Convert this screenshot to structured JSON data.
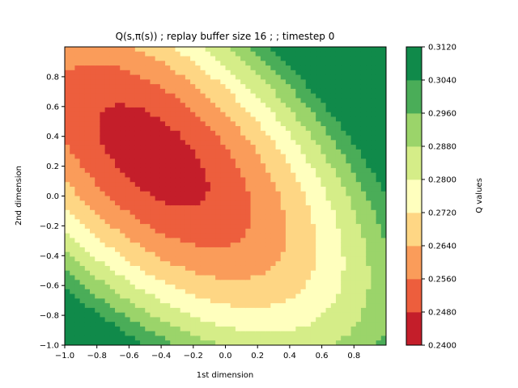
{
  "chart_data": {
    "type": "contour",
    "title": "Q(s,π(s)) ; replay buffer size 16 ;  ; timestep 0",
    "xlabel": "1st dimension",
    "ylabel": "2nd dimension",
    "xlim": [
      -1.0,
      1.0
    ],
    "ylim": [
      -1.0,
      1.0
    ],
    "x_ticks": [
      "−1.0",
      "−0.8",
      "−0.6",
      "−0.4",
      "−0.2",
      "0.0",
      "0.2",
      "0.4",
      "0.6",
      "0.8"
    ],
    "x_tick_values": [
      -1.0,
      -0.8,
      -0.6,
      -0.4,
      -0.2,
      0.0,
      0.2,
      0.4,
      0.6,
      0.8
    ],
    "y_ticks": [
      "−1.0",
      "−0.8",
      "−0.6",
      "−0.4",
      "−0.2",
      "0.0",
      "0.2",
      "0.4",
      "0.6",
      "0.8"
    ],
    "y_tick_values": [
      -1.0,
      -0.8,
      -0.6,
      -0.4,
      -0.2,
      0.0,
      0.2,
      0.4,
      0.6,
      0.8
    ],
    "minimum_location": [
      -0.45,
      0.27
    ],
    "colorbar": {
      "label": "Q values",
      "levels": [
        0.24,
        0.248,
        0.256,
        0.264,
        0.272,
        0.28,
        0.288,
        0.296,
        0.304,
        0.312
      ],
      "tick_labels": [
        "0.2400",
        "0.2480",
        "0.2560",
        "0.2640",
        "0.2720",
        "0.2800",
        "0.2880",
        "0.2960",
        "0.3040",
        "0.3120"
      ],
      "colors": [
        "#c41e2a",
        "#ed5e3d",
        "#fa9c5a",
        "#fed684",
        "#ffffbe",
        "#d5ed88",
        "#9bd46a",
        "#4aad58",
        "#108a4a"
      ]
    }
  }
}
